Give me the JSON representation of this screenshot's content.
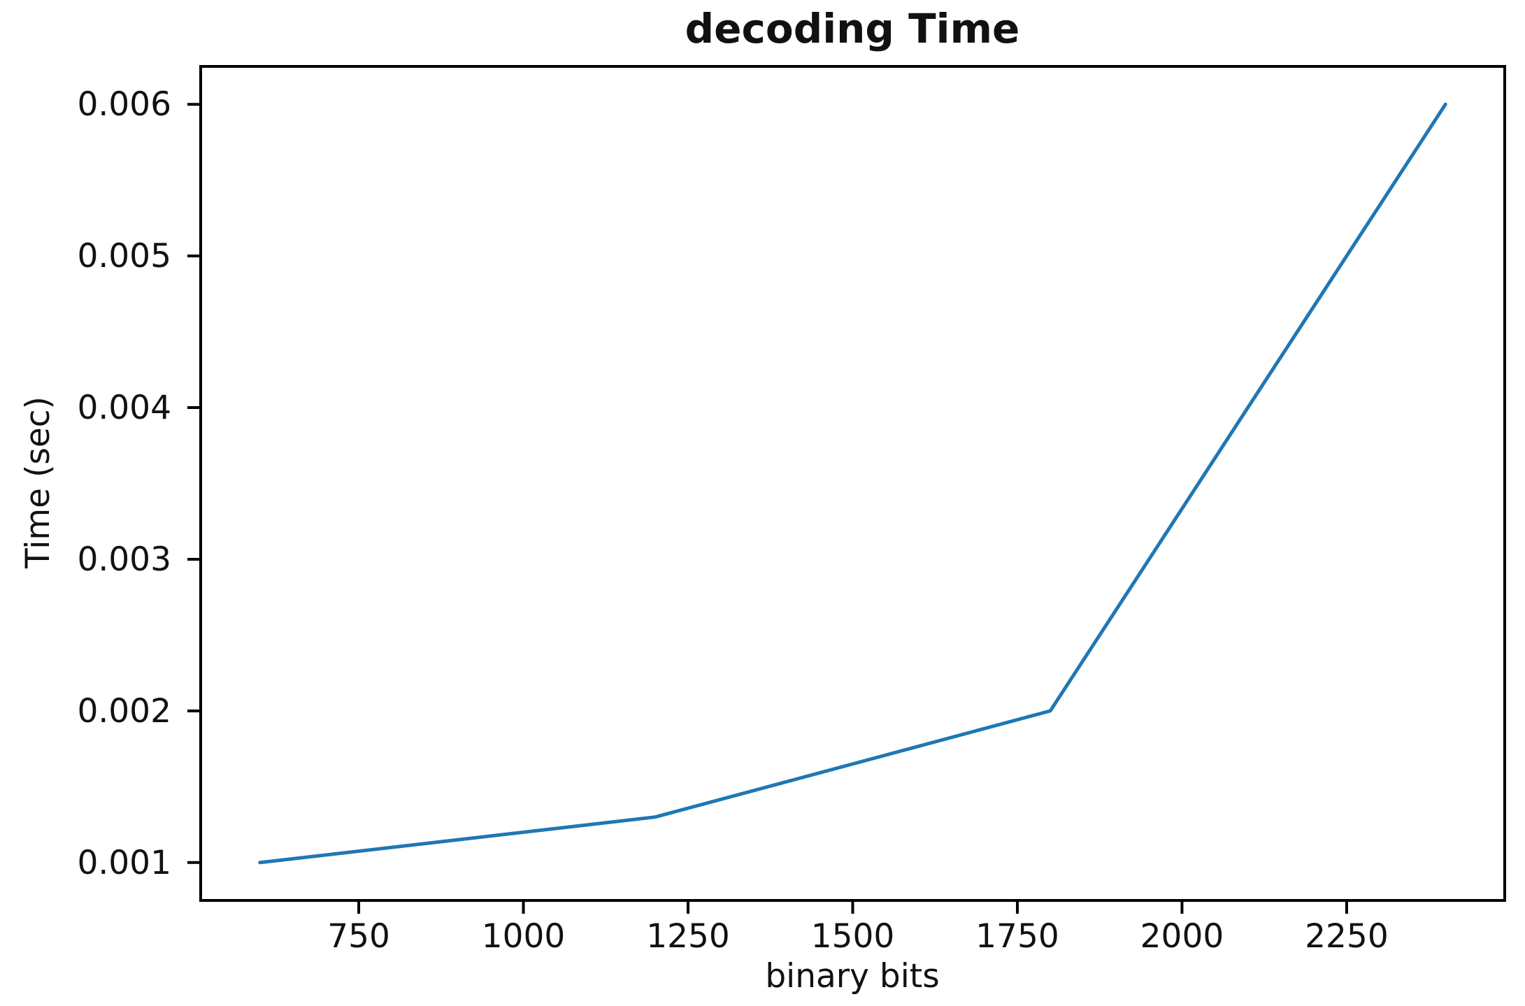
{
  "figure": {
    "background": "#ffffff"
  },
  "chart_data": {
    "type": "line",
    "title": "decoding Time",
    "xlabel": "binary bits",
    "ylabel": "Time (sec)",
    "x": [
      600,
      1200,
      1800,
      2400
    ],
    "y": [
      0.001,
      0.0013,
      0.002,
      0.006
    ],
    "xlim": [
      510,
      2490
    ],
    "ylim": [
      0.00075,
      0.00625
    ],
    "xticks": [
      750,
      1000,
      1250,
      1500,
      1750,
      2000,
      2250
    ],
    "xtick_labels": [
      "750",
      "1000",
      "1250",
      "1500",
      "1750",
      "2000",
      "2250"
    ],
    "yticks": [
      0.001,
      0.002,
      0.003,
      0.004,
      0.005,
      0.006
    ],
    "ytick_labels": [
      "0.001",
      "0.002",
      "0.003",
      "0.004",
      "0.005",
      "0.006"
    ],
    "grid": false,
    "legend_position": "none",
    "line_color": "#1f77b4",
    "axis_color": "#000000",
    "text_color": "#111111"
  }
}
